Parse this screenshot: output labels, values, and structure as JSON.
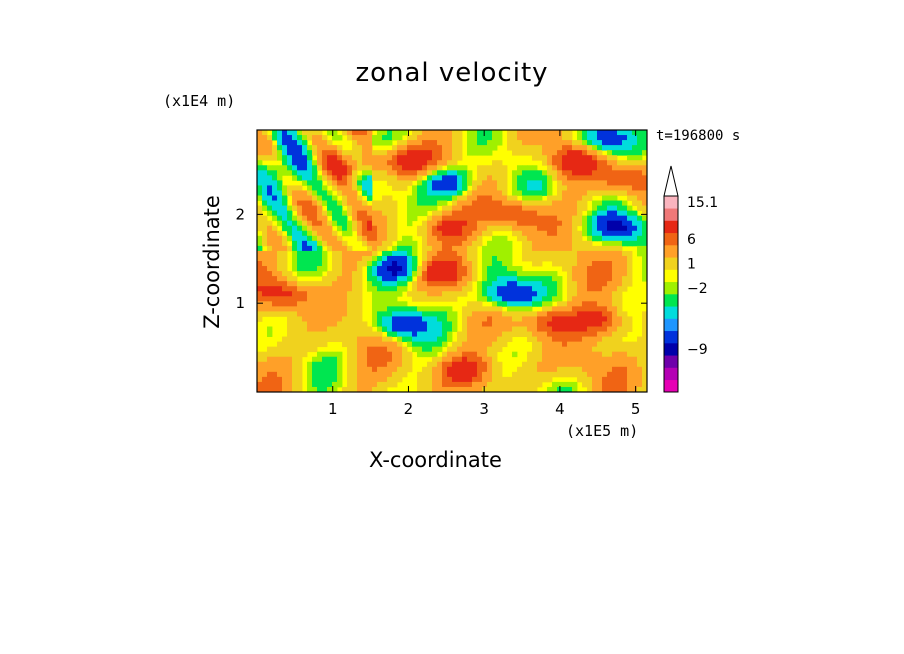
{
  "chart_data": {
    "type": "heatmap",
    "title": "zonal velocity",
    "xlabel": "X-coordinate",
    "ylabel": "Z-coordinate",
    "x_unit_label": "(x1E5 m)",
    "y_unit_label": "(x1E4 m)",
    "timestamp": "t=196800 s",
    "xlim": [
      0,
      5.15
    ],
    "ylim": [
      0,
      2.95
    ],
    "x_ticks": [
      1,
      2,
      3,
      4,
      5
    ],
    "x_tick_labels": [
      "1",
      "2",
      "3",
      "4",
      "5"
    ],
    "y_ticks": [
      1,
      2
    ],
    "y_tick_labels": [
      "1",
      "2"
    ],
    "colorbar": {
      "colors": [
        "#e600b4",
        "#b400b4",
        "#6e00aa",
        "#0000aa",
        "#0032dc",
        "#1e96ff",
        "#00dcdc",
        "#00e650",
        "#a0f000",
        "#ffff00",
        "#f0d21e",
        "#ffa028",
        "#f06414",
        "#e62814",
        "#f07878",
        "#fab4be"
      ],
      "labels": [
        {
          "text": "15.1",
          "level": 15.5
        },
        {
          "text": "6",
          "level": 12.5
        },
        {
          "text": "1",
          "level": 10.5
        },
        {
          "text": "−2",
          "level": 8.5
        },
        {
          "text": "−9",
          "level": 3.5
        }
      ],
      "extend_max": true,
      "background": "#ff7f50"
    },
    "features": [
      {
        "x": 2.5,
        "z": 2.35,
        "value": -9
      },
      {
        "x": 1.8,
        "z": 1.4,
        "value": -9
      },
      {
        "x": 1.9,
        "z": 0.75,
        "value": -9
      },
      {
        "x": 4.75,
        "z": 1.85,
        "value": -9
      },
      {
        "x": 4.6,
        "z": 2.85,
        "value": -9
      },
      {
        "x": 3.35,
        "z": 1.1,
        "value": -9
      },
      {
        "x": 3.0,
        "z": 1.05,
        "value": -2
      },
      {
        "x": 0.6,
        "z": 2.3,
        "value": -2
      },
      {
        "x": 3.7,
        "z": 2.3,
        "value": -2
      },
      {
        "x": 1.55,
        "z": 2.85,
        "value": -2
      },
      {
        "x": 3.15,
        "z": 1.3,
        "value": -2
      },
      {
        "x": 0.3,
        "z": 2.5,
        "value": -2
      },
      {
        "x": 1.3,
        "z": 2.55,
        "value": 6
      },
      {
        "x": 4.85,
        "z": 2.4,
        "value": 6
      },
      {
        "x": 2.45,
        "z": 1.85,
        "value": 6
      },
      {
        "x": 3.4,
        "z": 2.0,
        "value": 6
      },
      {
        "x": 4.15,
        "z": 2.6,
        "value": 6
      },
      {
        "x": 2.45,
        "z": 1.35,
        "value": 6
      },
      {
        "x": 2.75,
        "z": 0.25,
        "value": 6
      },
      {
        "x": 3.85,
        "z": 0.8,
        "value": 6
      },
      {
        "x": 4.55,
        "z": 0.8,
        "value": 6
      },
      {
        "x": 2.0,
        "z": 2.6,
        "value": 6
      },
      {
        "x": 0.4,
        "z": 1.1,
        "value": 6
      },
      {
        "x": 3.65,
        "z": 0.25,
        "value": 1
      },
      {
        "x": 0.8,
        "z": 0.5,
        "value": 1
      },
      {
        "x": 4.3,
        "z": 0.3,
        "value": 1
      },
      {
        "x": 4.3,
        "z": 1.3,
        "value": 1
      },
      {
        "x": 0.8,
        "z": 1.8,
        "value": 1
      }
    ]
  }
}
